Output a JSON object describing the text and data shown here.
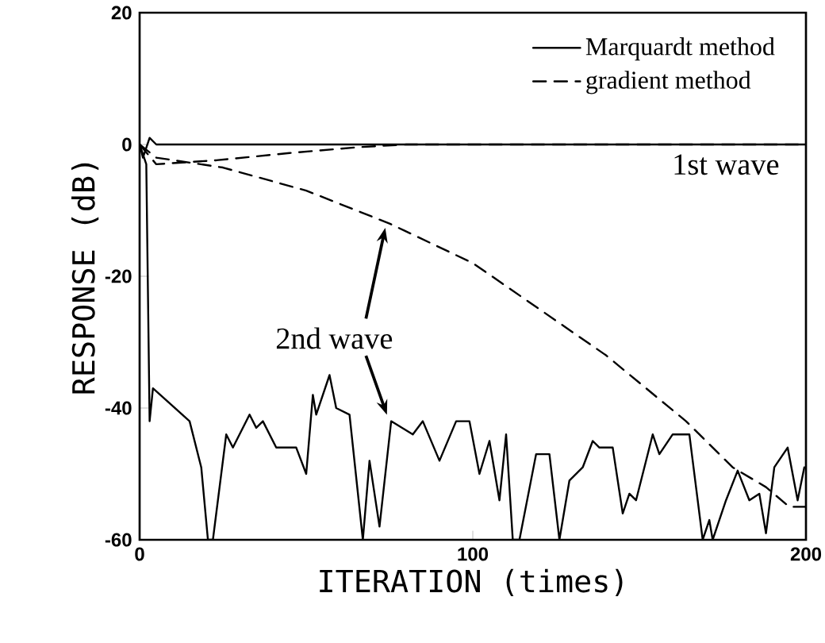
{
  "chart_data": {
    "type": "line",
    "xlabel": "ITERATION (times)",
    "ylabel": "RESPONSE (dB)",
    "xlim": [
      0,
      200
    ],
    "ylim": [
      -60,
      20
    ],
    "xticks": [
      0,
      100,
      200
    ],
    "yticks": [
      -60,
      -40,
      -20,
      0,
      20
    ],
    "legend": "top right",
    "grid": false,
    "annotations": [
      "1st wave",
      "2nd wave"
    ],
    "series": [
      {
        "name": "Marquardt method",
        "color": "#000000",
        "line_style": "solid",
        "x": [
          0,
          1,
          3,
          5,
          200
        ],
        "values": [
          0,
          -2,
          1,
          0,
          0
        ]
      },
      {
        "name": "gradient method",
        "color": "#000000",
        "line_style": "dashed",
        "x": [
          0,
          5,
          23,
          45,
          66,
          80,
          200
        ],
        "values": [
          0,
          -3,
          -2.4,
          -1.3,
          -0.4,
          0,
          0
        ]
      },
      {
        "color": "#000000",
        "line_style": "solid",
        "x": [
          0,
          2,
          3,
          4,
          15,
          18.5,
          20.5,
          22,
          26,
          28,
          33,
          35,
          37,
          41,
          47,
          50,
          52,
          53,
          57,
          59,
          63,
          67,
          69,
          72,
          75.5,
          82,
          85,
          90,
          95,
          99,
          102,
          105,
          108,
          110,
          112,
          114,
          119,
          123,
          126,
          129,
          133,
          136,
          138,
          142,
          145,
          147,
          149,
          154,
          156,
          160,
          165,
          167,
          169,
          171,
          172,
          176,
          179.5,
          183,
          186,
          188,
          190.5,
          194.5,
          197.5,
          199.5
        ],
        "values": [
          0,
          -3,
          -42,
          -37,
          -42,
          -49,
          -60,
          -60,
          -44,
          -46,
          -41,
          -43,
          -42,
          -46,
          -46,
          -50,
          -38,
          -41,
          -35,
          -40,
          -41,
          -60,
          -48,
          -58,
          -42,
          -44,
          -42,
          -48,
          -42,
          -42,
          -50,
          -45,
          -54,
          -44,
          -60,
          -60,
          -47,
          -47,
          -60,
          -51,
          -49,
          -45,
          -46,
          -46,
          -56,
          -53,
          -54,
          -44,
          -47,
          -44,
          -44,
          -52,
          -60,
          -57,
          -60,
          -54,
          -49.5,
          -54,
          -53,
          -59,
          -49,
          -46,
          -54,
          -49
        ]
      },
      {
        "color": "#000000",
        "line_style": "dashed",
        "x": [
          0,
          5,
          25,
          50,
          75,
          100,
          120,
          140,
          164,
          178,
          188,
          195,
          200
        ],
        "values": [
          0,
          -2,
          -3.5,
          -7,
          -12,
          -18,
          -25,
          -32,
          -42,
          -49,
          -52,
          -55,
          -55
        ]
      }
    ]
  }
}
